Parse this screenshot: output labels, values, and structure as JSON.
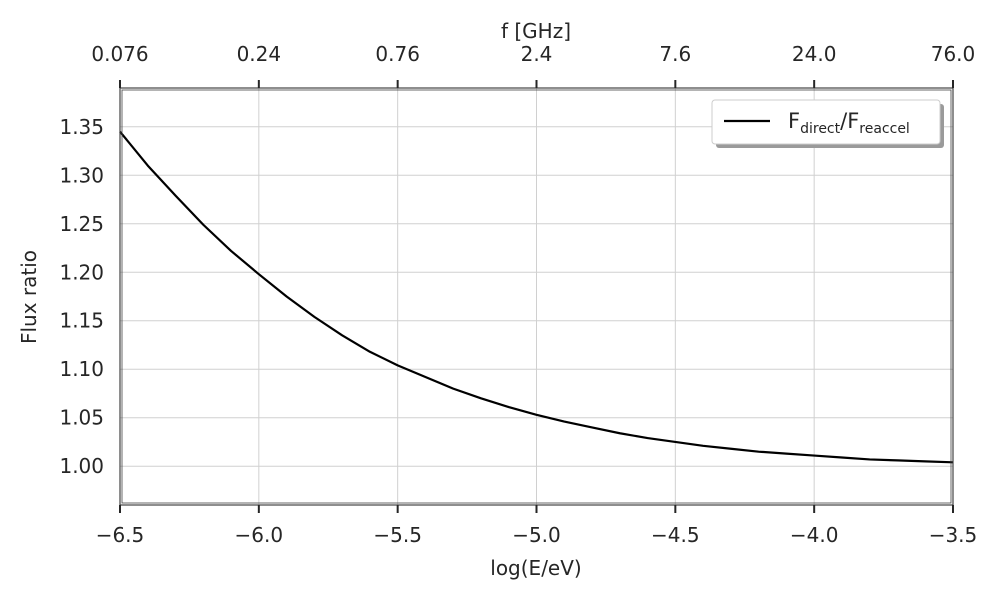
{
  "chart_data": {
    "type": "line",
    "xlabel": "log(E/eV)",
    "ylabel": "Flux ratio",
    "top_xlabel": "f [GHz]",
    "xlim": [
      -6.5,
      -3.5
    ],
    "ylim": [
      0.96,
      1.39
    ],
    "xticks": [
      -6.5,
      -6.0,
      -5.5,
      -5.0,
      -4.5,
      -4.0,
      -3.5
    ],
    "xtick_labels": [
      "−6.5",
      "−6.0",
      "−5.5",
      "−5.0",
      "−4.5",
      "−4.0",
      "−3.5"
    ],
    "yticks": [
      1.0,
      1.05,
      1.1,
      1.15,
      1.2,
      1.25,
      1.3,
      1.35
    ],
    "ytick_labels": [
      "1.00",
      "1.05",
      "1.10",
      "1.15",
      "1.20",
      "1.25",
      "1.30",
      "1.35"
    ],
    "top_xticks": [
      -6.5,
      -6.0,
      -5.5,
      -5.0,
      -4.5,
      -4.0,
      -3.5
    ],
    "top_xtick_labels": [
      "0.076",
      "0.24",
      "0.76",
      "2.4",
      "7.6",
      "24.0",
      "76.0"
    ],
    "grid": true,
    "legend_position": "top-right",
    "series": [
      {
        "name": "F_direct/F_reaccel",
        "legend_main": "F",
        "legend_sub1": "direct",
        "legend_sep": "/F",
        "legend_sub2": "reaccel",
        "color": "#000000",
        "x": [
          -6.5,
          -6.4,
          -6.3,
          -6.2,
          -6.1,
          -6.0,
          -5.9,
          -5.8,
          -5.7,
          -5.6,
          -5.5,
          -5.4,
          -5.3,
          -5.2,
          -5.1,
          -5.0,
          -4.9,
          -4.8,
          -4.7,
          -4.6,
          -4.5,
          -4.4,
          -4.3,
          -4.2,
          -4.1,
          -4.0,
          -3.9,
          -3.8,
          -3.7,
          -3.6,
          -3.5
        ],
        "y": [
          1.345,
          1.31,
          1.279,
          1.249,
          1.222,
          1.198,
          1.175,
          1.154,
          1.135,
          1.118,
          1.104,
          1.092,
          1.08,
          1.07,
          1.061,
          1.053,
          1.046,
          1.04,
          1.034,
          1.029,
          1.025,
          1.021,
          1.018,
          1.015,
          1.013,
          1.011,
          1.009,
          1.007,
          1.006,
          1.005,
          1.004
        ]
      }
    ]
  }
}
